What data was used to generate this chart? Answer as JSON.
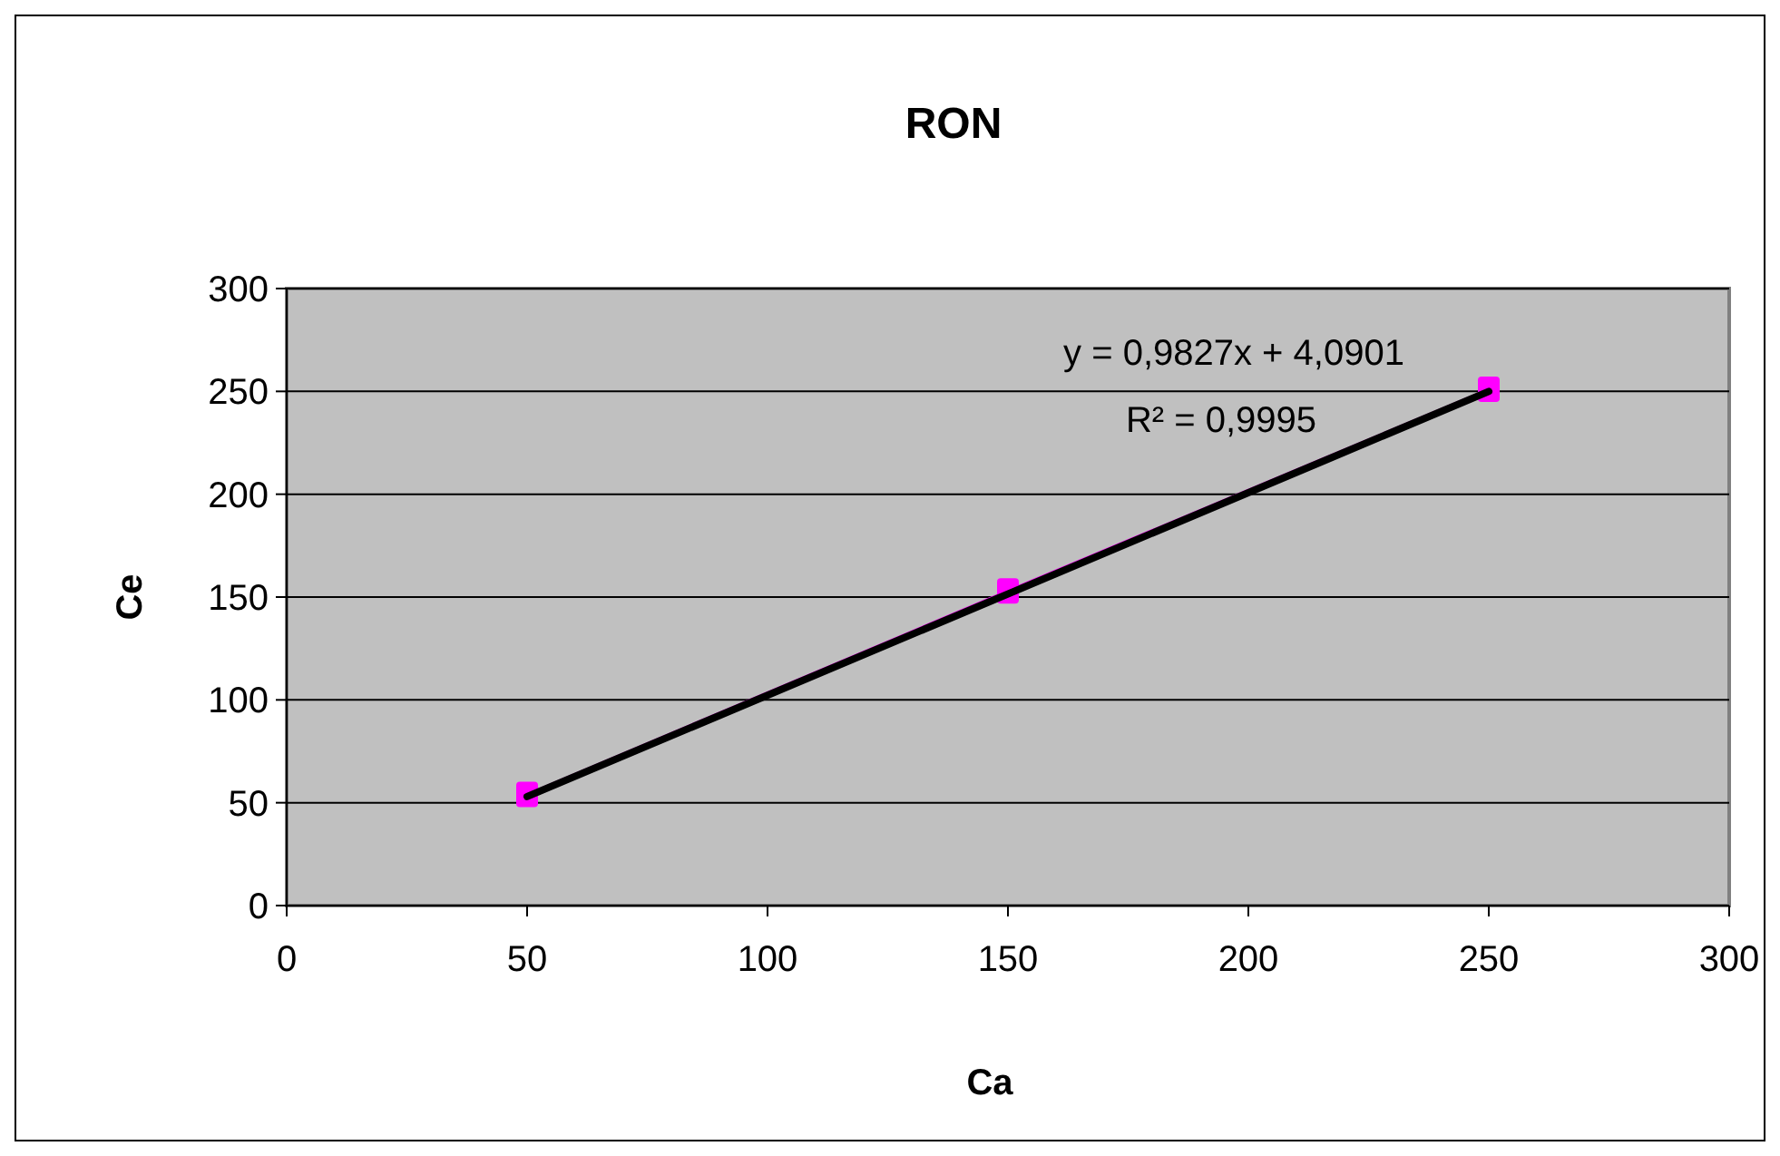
{
  "chart_data": {
    "type": "line",
    "title": "RON",
    "xlabel": "Ca",
    "ylabel": "Ce",
    "x": [
      50,
      150,
      250
    ],
    "series": [
      {
        "color": "#ff00ff",
        "values": [
          54,
          153,
          251
        ],
        "marker": "square"
      },
      {
        "type": "line",
        "color": "#000000",
        "x": [
          50,
          250
        ],
        "values": [
          53,
          250
        ],
        "marker": "none"
      }
    ],
    "xlim": [
      0,
      300
    ],
    "xticks": [
      0,
      50,
      100,
      150,
      200,
      250,
      300
    ],
    "ylim": [
      0,
      300
    ],
    "yticks": [
      0,
      50,
      100,
      150,
      200,
      250,
      300
    ],
    "grid": "y",
    "annotations": [
      "y = 0,9827x + 4,0901",
      "R² = 0,9995"
    ]
  }
}
